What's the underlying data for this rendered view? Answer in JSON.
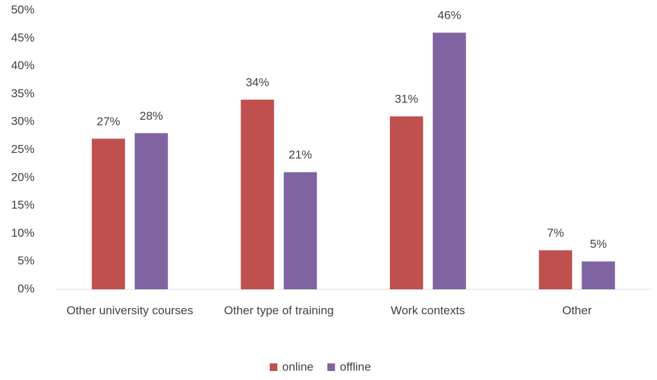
{
  "chart_data": {
    "type": "bar",
    "categories": [
      "Other university courses",
      "Other type of training",
      "Work contexts",
      "Other"
    ],
    "series": [
      {
        "name": "online",
        "color": "#c0504d",
        "values": [
          27,
          34,
          31,
          7
        ],
        "value_labels": [
          "27%",
          "34%",
          "31%",
          "7%"
        ]
      },
      {
        "name": "offline",
        "color": "#8064a2",
        "values": [
          28,
          21,
          46,
          5
        ],
        "value_labels": [
          "28%",
          "21%",
          "46%",
          "5%"
        ]
      }
    ],
    "ylim": [
      0,
      50
    ],
    "yticks": [
      {
        "value": 0,
        "label": "0%"
      },
      {
        "value": 5,
        "label": "5%"
      },
      {
        "value": 10,
        "label": "10%"
      },
      {
        "value": 15,
        "label": "15%"
      },
      {
        "value": 20,
        "label": "20%"
      },
      {
        "value": 25,
        "label": "25%"
      },
      {
        "value": 30,
        "label": "30%"
      },
      {
        "value": 35,
        "label": "35%"
      },
      {
        "value": 40,
        "label": "40%"
      },
      {
        "value": 45,
        "label": "45%"
      },
      {
        "value": 50,
        "label": "50%"
      }
    ],
    "grid": false,
    "legend": "bottom"
  }
}
